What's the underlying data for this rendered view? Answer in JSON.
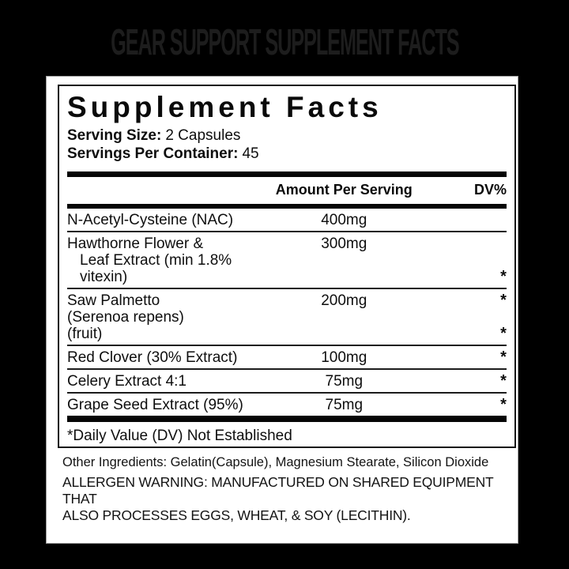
{
  "product_title": "GEAR SUPPORT SUPPLEMENT FACTS",
  "label": {
    "heading": "Supplement Facts",
    "serving_size_label": "Serving Size:",
    "serving_size_value": "2 Capsules",
    "servings_per_container_label": "Servings Per Container:",
    "servings_per_container_value": "45",
    "columns": {
      "amount": "Amount Per Serving",
      "dv": "DV%"
    },
    "rows": [
      {
        "name_lines": [
          "N-Acetyl-Cysteine (NAC)"
        ],
        "amount": "400mg",
        "asterisk_lines": [],
        "indent_continuation": false
      },
      {
        "name_lines": [
          "Hawthorne Flower &",
          "Leaf Extract (min 1.8%",
          "vitexin)"
        ],
        "amount": "300mg",
        "asterisk_lines": [
          2
        ],
        "indent_continuation": true
      },
      {
        "name_lines": [
          "Saw Palmetto",
          "(Serenoa repens)",
          "(fruit)"
        ],
        "amount": "200mg",
        "asterisk_lines": [
          0,
          2
        ],
        "indent_continuation": false
      },
      {
        "name_lines": [
          "Red Clover (30% Extract)"
        ],
        "amount": "100mg",
        "asterisk_lines": [
          0
        ],
        "indent_continuation": false
      },
      {
        "name_lines": [
          "Celery Extract 4:1"
        ],
        "amount": "75mg",
        "asterisk_lines": [
          0
        ],
        "indent_continuation": false
      },
      {
        "name_lines": [
          "Grape Seed Extract (95%)"
        ],
        "amount": "75mg",
        "asterisk_lines": [
          0
        ],
        "indent_continuation": false
      }
    ],
    "asterisk_glyph": "*",
    "footnote": "*Daily Value (DV) Not Established"
  },
  "footer": {
    "other_ingredients": "Other Ingredients: Gelatin(Capsule), Magnesium Stearate, Silicon Dioxide",
    "allergen_line1": "ALLERGEN WARNING:  MANUFACTURED ON SHARED EQUIPMENT THAT",
    "allergen_line2": "ALSO PROCESSES EGGS, WHEAT, & SOY (LECITHIN)."
  },
  "colors": {
    "canvas_background": "#000000",
    "panel_background": "#ffffff",
    "panel_border": "#9e9e9e",
    "text": "#0e0e0e",
    "title_text": "#1d1d1d",
    "rule": "#1c1c1c"
  }
}
